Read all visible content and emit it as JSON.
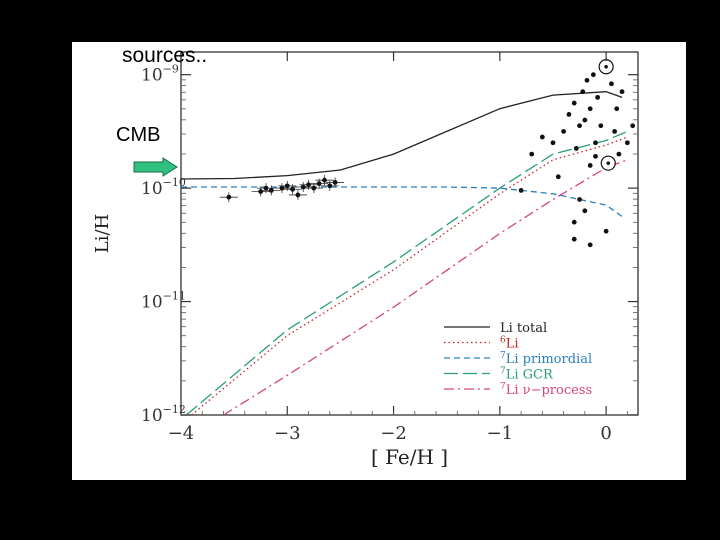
{
  "slide": {
    "title": "sources..",
    "cmb_label": "CMB",
    "arrow_color": "#2ec27e"
  },
  "chart_data": {
    "type": "line",
    "title": "",
    "xlabel": "[ Fe/H ]",
    "ylabel": "Li/H",
    "xlim": [
      -4,
      0.3
    ],
    "ylim_log10": [
      -12,
      -8.8
    ],
    "y_scale": "log",
    "grid": false,
    "x_ticks": [
      {
        "value": -4,
        "label": "−4"
      },
      {
        "value": -3,
        "label": "−3"
      },
      {
        "value": -2,
        "label": "−2"
      },
      {
        "value": -1,
        "label": "−1"
      },
      {
        "value": 0,
        "label": "0"
      }
    ],
    "y_ticks": [
      {
        "value": -9,
        "base": "10",
        "exp": "−9"
      },
      {
        "value": -10,
        "base": "10",
        "exp": "−10"
      },
      {
        "value": -11,
        "base": "10",
        "exp": "−11"
      },
      {
        "value": -12,
        "base": "10",
        "exp": "−12"
      }
    ],
    "legend_position": "bottom-right",
    "series": [
      {
        "name": "Li total",
        "sup": "",
        "style": "solid",
        "color": "#222222",
        "x": [
          -4,
          -3.5,
          -3,
          -2.5,
          -2,
          -1.5,
          -1,
          -0.5,
          0,
          0.15
        ],
        "y": [
          -9.92,
          -9.915,
          -9.89,
          -9.84,
          -9.7,
          -9.5,
          -9.3,
          -9.18,
          -9.15,
          -9.2
        ]
      },
      {
        "name": "Li",
        "sup": "6",
        "style": "dotted",
        "color": "#cc2222",
        "x": [
          -3.9,
          -3,
          -2,
          -1,
          -0.5,
          0,
          0.2
        ],
        "y": [
          -12.0,
          -11.3,
          -10.72,
          -10.05,
          -9.75,
          -9.62,
          -9.55
        ]
      },
      {
        "name": "Li primordial",
        "sup": "7",
        "style": "dashed",
        "color": "#2a7fbf",
        "x": [
          -4,
          -3,
          -2,
          -1.5,
          -1,
          -0.5,
          0,
          0.15
        ],
        "y": [
          -9.99,
          -9.99,
          -9.99,
          -9.99,
          -10.0,
          -10.05,
          -10.15,
          -10.25
        ]
      },
      {
        "name": "Li GCR",
        "sup": "7",
        "style": "longdash",
        "color": "#2a9d7a",
        "x": [
          -3.95,
          -3,
          -2,
          -1,
          -0.5,
          0,
          0.2
        ],
        "y": [
          -12.0,
          -11.25,
          -10.65,
          -10.0,
          -9.7,
          -9.58,
          -9.5
        ]
      },
      {
        "name": "Li ν−process",
        "sup": "7",
        "style": "dashdot",
        "color": "#d6457f",
        "x": [
          -3.6,
          -3,
          -2,
          -1,
          -0.5,
          0,
          0.2
        ],
        "y": [
          -12.0,
          -11.65,
          -11.05,
          -10.4,
          -10.1,
          -9.82,
          -9.75
        ]
      }
    ],
    "points": [
      {
        "x": -3.55,
        "y": -10.08
      },
      {
        "x": -3.25,
        "y": -10.03
      },
      {
        "x": -3.2,
        "y": -10.0
      },
      {
        "x": -3.15,
        "y": -10.02
      },
      {
        "x": -3.05,
        "y": -10.0
      },
      {
        "x": -3.0,
        "y": -9.98
      },
      {
        "x": -2.95,
        "y": -10.01
      },
      {
        "x": -2.9,
        "y": -10.06
      },
      {
        "x": -2.85,
        "y": -9.99
      },
      {
        "x": -2.8,
        "y": -9.97
      },
      {
        "x": -2.75,
        "y": -10.0
      },
      {
        "x": -2.7,
        "y": -9.96
      },
      {
        "x": -2.65,
        "y": -9.93
      },
      {
        "x": -2.6,
        "y": -9.98
      },
      {
        "x": -2.55,
        "y": -9.95
      },
      {
        "x": -0.8,
        "y": -10.02
      },
      {
        "x": -0.7,
        "y": -9.7
      },
      {
        "x": -0.6,
        "y": -9.55
      },
      {
        "x": -0.5,
        "y": -9.6
      },
      {
        "x": -0.45,
        "y": -9.9
      },
      {
        "x": -0.4,
        "y": -9.5
      },
      {
        "x": -0.35,
        "y": -9.35
      },
      {
        "x": -0.3,
        "y": -9.25
      },
      {
        "x": -0.28,
        "y": -9.65
      },
      {
        "x": -0.25,
        "y": -9.45
      },
      {
        "x": -0.22,
        "y": -9.15
      },
      {
        "x": -0.2,
        "y": -9.4
      },
      {
        "x": -0.18,
        "y": -9.05
      },
      {
        "x": -0.15,
        "y": -9.3
      },
      {
        "x": -0.12,
        "y": -9.0
      },
      {
        "x": -0.1,
        "y": -9.6
      },
      {
        "x": -0.08,
        "y": -9.2
      },
      {
        "x": -0.05,
        "y": -9.45
      },
      {
        "x": -0.3,
        "y": -10.3
      },
      {
        "x": -0.25,
        "y": -10.1
      },
      {
        "x": -0.2,
        "y": -10.2
      },
      {
        "x": -0.15,
        "y": -9.8
      },
      {
        "x": -0.1,
        "y": -9.72
      },
      {
        "x": 0.05,
        "y": -9.08
      },
      {
        "x": 0.08,
        "y": -9.5
      },
      {
        "x": 0.1,
        "y": -9.3
      },
      {
        "x": 0.15,
        "y": -9.15
      },
      {
        "x": 0.2,
        "y": -9.6
      },
      {
        "x": 0.25,
        "y": -9.45
      },
      {
        "x": 0.12,
        "y": -9.7
      },
      {
        "x": -0.3,
        "y": -10.45
      },
      {
        "x": -0.15,
        "y": -10.5
      },
      {
        "x": 0.0,
        "y": -10.38
      }
    ],
    "sun_markers": [
      {
        "x": 0.0,
        "y": -8.93
      },
      {
        "x": 0.02,
        "y": -9.78
      }
    ]
  }
}
